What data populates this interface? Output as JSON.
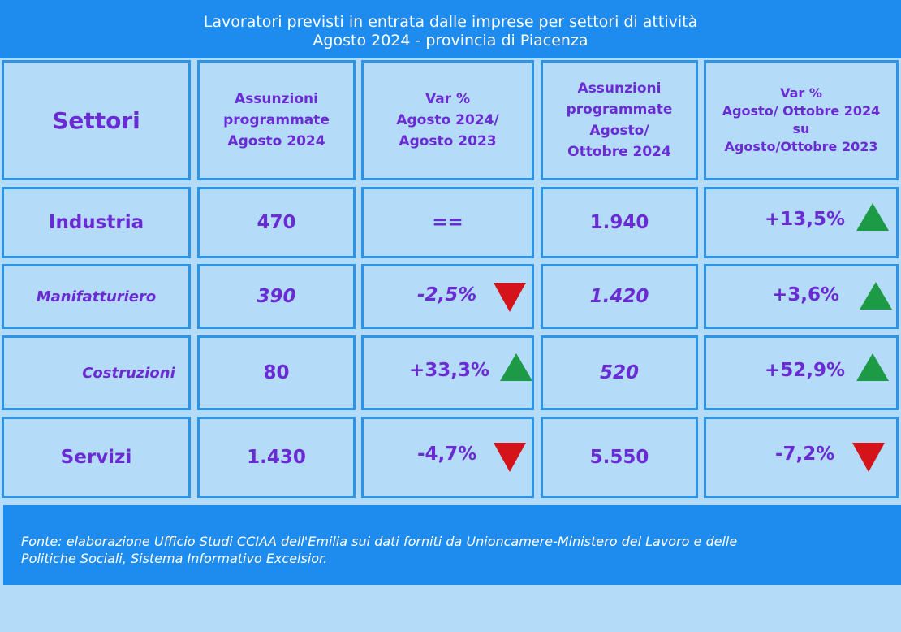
{
  "title_line1": "Lavoratori previsti in entrata dalle imprese per settori di attività",
  "title_line2": "Agosto 2024 - provincia di Piacenza",
  "colors": {
    "accent": "#1e8cef",
    "text": "#6a2bd4",
    "up": "#1c9a45",
    "down": "#d4131b"
  },
  "chart_data": {
    "type": "table",
    "columns": [
      "Settori",
      "Assunzioni programmate Agosto 2024",
      "Var % Agosto 2024/ Agosto 2023",
      "Assunzioni programmate Agosto/ Ottobre 2024",
      "Var % Agosto/ Ottobre 2024 su Agosto/Ottobre 2023"
    ],
    "header": {
      "settori": "Settori",
      "c1": [
        "Assunzioni",
        "programmate",
        "Agosto 2024"
      ],
      "c2": [
        "Var %",
        "Agosto 2024/",
        "Agosto 2023"
      ],
      "c3": [
        "Assunzioni",
        "programmate",
        "Agosto/",
        "Ottobre 2024"
      ],
      "c4": [
        "Var %",
        "Agosto/ Ottobre 2024",
        "su",
        "Agosto/Ottobre 2023"
      ]
    },
    "rows": [
      {
        "name": "Industria",
        "assunzioni_ago": "470",
        "var_ago": "==",
        "var_ago_trend": "none",
        "assunzioni_ago_ott": "1.940",
        "var_ago_ott": "+13,5%",
        "var_ago_ott_trend": "up"
      },
      {
        "name": "Manifatturiero",
        "assunzioni_ago": "390",
        "var_ago": "-2,5%",
        "var_ago_trend": "down",
        "assunzioni_ago_ott": "1.420",
        "var_ago_ott": "+3,6%",
        "var_ago_ott_trend": "up"
      },
      {
        "name": "Costruzioni",
        "assunzioni_ago": "80",
        "var_ago": "+33,3%",
        "var_ago_trend": "up",
        "assunzioni_ago_ott": "520",
        "var_ago_ott": "+52,9%",
        "var_ago_ott_trend": "up"
      },
      {
        "name": "Servizi",
        "assunzioni_ago": "1.430",
        "var_ago": "-4,7%",
        "var_ago_trend": "down",
        "assunzioni_ago_ott": "5.550",
        "var_ago_ott": "-7,2%",
        "var_ago_ott_trend": "down"
      }
    ]
  },
  "footer_line1": "Fonte: elaborazione Ufficio Studi CCIAA dell'Emilia sui dati forniti da Unioncamere-Ministero del Lavoro e delle",
  "footer_line2": "Politiche Sociali, Sistema Informativo Excelsior."
}
